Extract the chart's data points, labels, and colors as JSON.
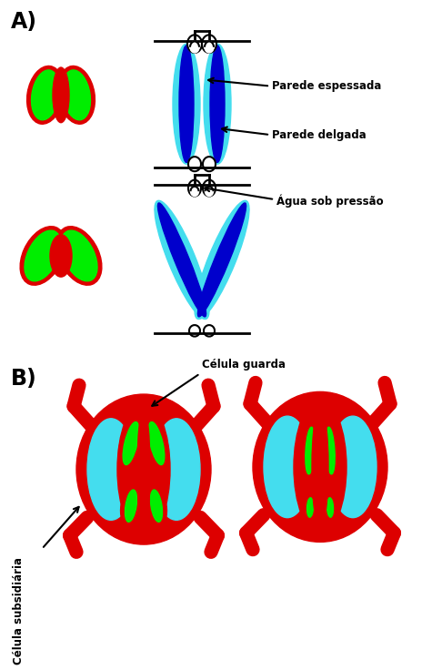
{
  "bg_color": "#ffffff",
  "title_A": "A)",
  "title_B": "B)",
  "label_parede_espessada": "Parede espessada",
  "label_parede_delgada": "Parede delgada",
  "label_agua_pressao": "Água sob pressão",
  "label_celula_guarda": "Célula guarda",
  "label_celula_subsidiaria": "Célula subsidiária",
  "colors": {
    "red": "#dd0000",
    "green": "#00ee00",
    "cyan": "#44ddee",
    "blue": "#0000cc",
    "white": "#ffffff",
    "black": "#000000"
  }
}
